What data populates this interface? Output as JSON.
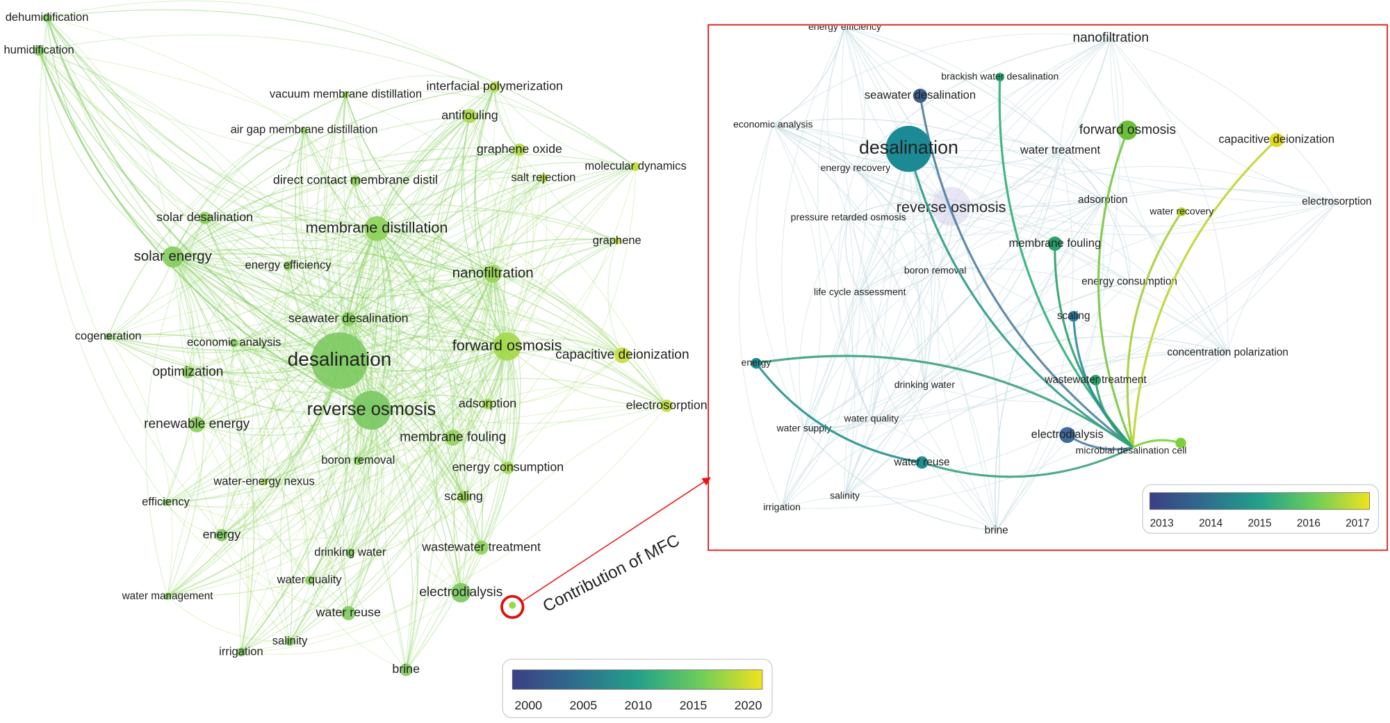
{
  "left_network": {
    "nodes": [
      "dehumidification",
      "humidification",
      "vacuum membrane distillation",
      "interfacial polymerization",
      "air gap membrane distillation",
      "antifouling",
      "graphene oxide",
      "molecular dynamics",
      "direct contact membrane distil",
      "salt rejection",
      "solar desalination",
      "membrane distillation",
      "graphene",
      "solar energy",
      "energy efficiency",
      "nanofiltration",
      "seawater desalination",
      "cogeneration",
      "economic analysis",
      "forward osmosis",
      "capacitive deionization",
      "desalination",
      "optimization",
      "electrosorption",
      "adsorption",
      "reverse osmosis",
      "renewable energy",
      "membrane fouling",
      "boron removal",
      "energy consumption",
      "water-energy nexus",
      "scaling",
      "efficiency",
      "energy",
      "wastewater treatment",
      "drinking water",
      "water quality",
      "electrodialysis",
      "water management",
      "water reuse",
      "salinity",
      "irrigation",
      "brine"
    ],
    "colorbar_ticks": [
      2000,
      2005,
      2010,
      2015,
      2020
    ]
  },
  "annotation": "Contribution of MFC",
  "right_network": {
    "nodes": [
      "seawater desalination",
      "brackish water desalination",
      "desalination",
      "forward osmosis",
      "capacitive deionization",
      "water recovery",
      "membrane fouling",
      "scaling",
      "energy",
      "wastewater treatment",
      "electrodialysis",
      "microbial desalination cell",
      "water reuse"
    ],
    "faded_nodes": [
      "energy efficiency",
      "nanofiltration",
      "economic analysis",
      "water treatment",
      "reverse osmosis",
      "adsorption",
      "electrosorption",
      "boron removal",
      "energy consumption",
      "life cycle assessment",
      "pressure retarded osmosis",
      "energy recovery",
      "concentration polarization",
      "drinking water",
      "water quality",
      "water supply",
      "irrigation",
      "salinity",
      "brine"
    ],
    "colorbar_ticks": [
      2013,
      2014,
      2015,
      2016,
      2017
    ]
  }
}
